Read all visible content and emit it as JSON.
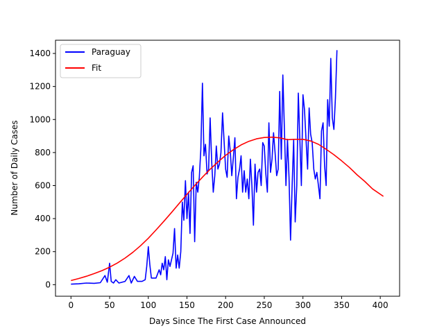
{
  "chart_data": {
    "type": "line",
    "title": "",
    "xlabel": "Days Since The First Case Announced",
    "ylabel": "Number of Daily Cases",
    "xlim": [
      -20,
      425
    ],
    "ylim": [
      -70,
      1480
    ],
    "xticks": [
      0,
      50,
      100,
      150,
      200,
      250,
      300,
      350,
      400
    ],
    "yticks": [
      0,
      200,
      400,
      600,
      800,
      1000,
      1200,
      1400
    ],
    "grid": false,
    "legend_position": "top-left",
    "series": [
      {
        "name": "Paraguay",
        "color": "#0000ff",
        "points": [
          [
            0,
            3
          ],
          [
            10,
            5
          ],
          [
            20,
            10
          ],
          [
            30,
            8
          ],
          [
            38,
            12
          ],
          [
            44,
            55
          ],
          [
            47,
            15
          ],
          [
            50,
            130
          ],
          [
            52,
            20
          ],
          [
            55,
            10
          ],
          [
            58,
            30
          ],
          [
            62,
            10
          ],
          [
            70,
            20
          ],
          [
            75,
            55
          ],
          [
            78,
            10
          ],
          [
            82,
            50
          ],
          [
            86,
            20
          ],
          [
            92,
            20
          ],
          [
            96,
            30
          ],
          [
            98,
            110
          ],
          [
            100,
            230
          ],
          [
            102,
            120
          ],
          [
            104,
            40
          ],
          [
            110,
            40
          ],
          [
            114,
            90
          ],
          [
            116,
            60
          ],
          [
            118,
            130
          ],
          [
            120,
            90
          ],
          [
            122,
            170
          ],
          [
            124,
            30
          ],
          [
            126,
            150
          ],
          [
            128,
            110
          ],
          [
            130,
            150
          ],
          [
            132,
            190
          ],
          [
            134,
            340
          ],
          [
            136,
            100
          ],
          [
            138,
            180
          ],
          [
            140,
            100
          ],
          [
            142,
            200
          ],
          [
            144,
            500
          ],
          [
            146,
            390
          ],
          [
            148,
            630
          ],
          [
            150,
            400
          ],
          [
            152,
            560
          ],
          [
            154,
            310
          ],
          [
            156,
            680
          ],
          [
            158,
            720
          ],
          [
            160,
            260
          ],
          [
            162,
            620
          ],
          [
            164,
            560
          ],
          [
            166,
            650
          ],
          [
            168,
            820
          ],
          [
            170,
            1220
          ],
          [
            172,
            780
          ],
          [
            174,
            850
          ],
          [
            176,
            670
          ],
          [
            178,
            700
          ],
          [
            180,
            1010
          ],
          [
            182,
            740
          ],
          [
            184,
            560
          ],
          [
            186,
            660
          ],
          [
            188,
            840
          ],
          [
            190,
            700
          ],
          [
            192,
            730
          ],
          [
            194,
            800
          ],
          [
            196,
            1040
          ],
          [
            198,
            870
          ],
          [
            200,
            700
          ],
          [
            202,
            650
          ],
          [
            204,
            900
          ],
          [
            206,
            810
          ],
          [
            208,
            660
          ],
          [
            210,
            770
          ],
          [
            212,
            890
          ],
          [
            214,
            520
          ],
          [
            216,
            650
          ],
          [
            218,
            700
          ],
          [
            220,
            780
          ],
          [
            222,
            560
          ],
          [
            224,
            690
          ],
          [
            226,
            560
          ],
          [
            228,
            640
          ],
          [
            230,
            520
          ],
          [
            232,
            760
          ],
          [
            234,
            600
          ],
          [
            236,
            360
          ],
          [
            238,
            730
          ],
          [
            240,
            560
          ],
          [
            242,
            680
          ],
          [
            244,
            700
          ],
          [
            246,
            600
          ],
          [
            248,
            860
          ],
          [
            250,
            840
          ],
          [
            252,
            670
          ],
          [
            254,
            560
          ],
          [
            256,
            980
          ],
          [
            258,
            680
          ],
          [
            260,
            760
          ],
          [
            262,
            920
          ],
          [
            264,
            800
          ],
          [
            266,
            660
          ],
          [
            268,
            700
          ],
          [
            270,
            1170
          ],
          [
            272,
            760
          ],
          [
            274,
            1270
          ],
          [
            276,
            950
          ],
          [
            278,
            600
          ],
          [
            280,
            880
          ],
          [
            282,
            650
          ],
          [
            284,
            270
          ],
          [
            286,
            600
          ],
          [
            288,
            880
          ],
          [
            290,
            380
          ],
          [
            292,
            600
          ],
          [
            294,
            1160
          ],
          [
            296,
            880
          ],
          [
            298,
            600
          ],
          [
            300,
            1150
          ],
          [
            302,
            1060
          ],
          [
            304,
            880
          ],
          [
            306,
            700
          ],
          [
            308,
            1070
          ],
          [
            310,
            910
          ],
          [
            312,
            860
          ],
          [
            314,
            700
          ],
          [
            316,
            640
          ],
          [
            318,
            680
          ],
          [
            320,
            600
          ],
          [
            322,
            520
          ],
          [
            324,
            930
          ],
          [
            326,
            980
          ],
          [
            328,
            720
          ],
          [
            330,
            600
          ],
          [
            332,
            1120
          ],
          [
            334,
            960
          ],
          [
            336,
            1370
          ],
          [
            338,
            1010
          ],
          [
            340,
            940
          ],
          [
            342,
            1130
          ],
          [
            344,
            1420
          ]
        ]
      },
      {
        "name": "Fit",
        "color": "#ff0000",
        "points": [
          [
            0,
            25
          ],
          [
            10,
            37
          ],
          [
            20,
            51
          ],
          [
            30,
            67
          ],
          [
            40,
            85
          ],
          [
            50,
            106
          ],
          [
            60,
            131
          ],
          [
            70,
            161
          ],
          [
            80,
            196
          ],
          [
            90,
            236
          ],
          [
            100,
            281
          ],
          [
            110,
            331
          ],
          [
            120,
            383
          ],
          [
            130,
            437
          ],
          [
            140,
            492
          ],
          [
            150,
            547
          ],
          [
            160,
            600
          ],
          [
            170,
            651
          ],
          [
            180,
            699
          ],
          [
            190,
            743
          ],
          [
            200,
            783
          ],
          [
            210,
            817
          ],
          [
            220,
            846
          ],
          [
            230,
            868
          ],
          [
            240,
            883
          ],
          [
            250,
            891
          ],
          [
            260,
            893
          ],
          [
            270,
            889
          ],
          [
            280,
            878
          ],
          [
            290,
            880
          ],
          [
            300,
            880
          ],
          [
            310,
            870
          ],
          [
            320,
            850
          ],
          [
            330,
            820
          ],
          [
            340,
            787
          ],
          [
            350,
            750
          ],
          [
            360,
            710
          ],
          [
            370,
            665
          ],
          [
            380,
            625
          ],
          [
            390,
            580
          ],
          [
            404,
            535
          ]
        ]
      }
    ]
  }
}
